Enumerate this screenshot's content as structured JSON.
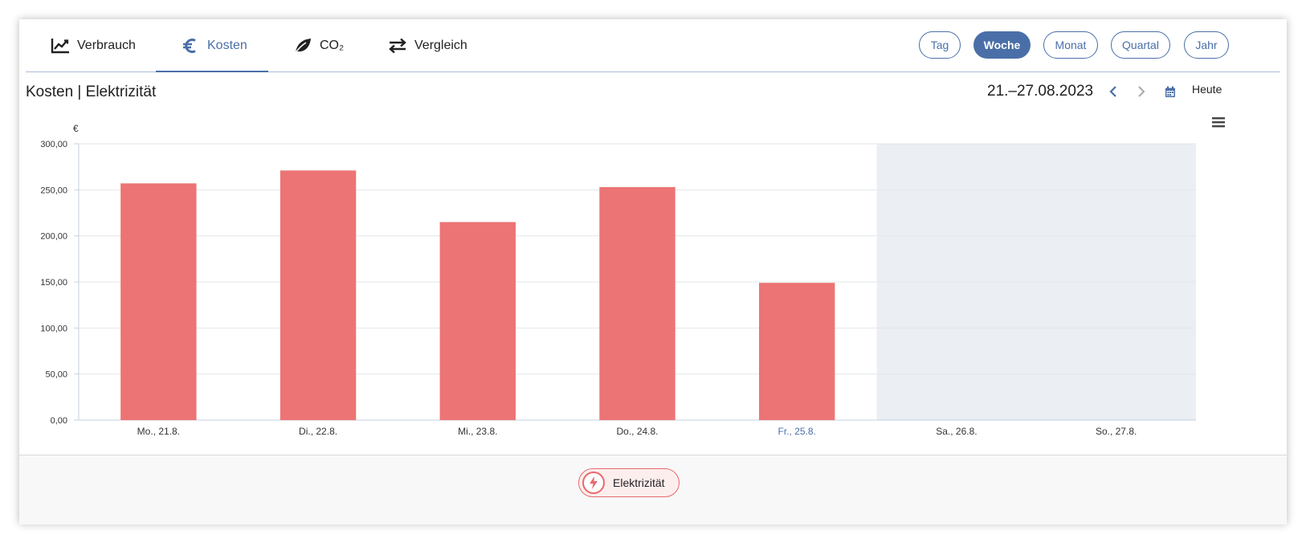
{
  "tabs": [
    {
      "label": "Verbrauch",
      "icon": "chart-line-icon",
      "active": false
    },
    {
      "label": "Kosten",
      "icon": "euro-icon",
      "active": true
    },
    {
      "label": "CO₂",
      "icon": "leaf-icon",
      "active": false
    },
    {
      "label": "Vergleich",
      "icon": "swap-arrows-icon",
      "active": false
    }
  ],
  "periods": [
    {
      "label": "Tag",
      "active": false
    },
    {
      "label": "Woche",
      "active": true
    },
    {
      "label": "Monat",
      "active": false
    },
    {
      "label": "Quartal",
      "active": false
    },
    {
      "label": "Jahr",
      "active": false
    }
  ],
  "header": {
    "title": "Kosten | Elektrizität",
    "date_range": "21.–27.08.2023",
    "today_label": "Heute"
  },
  "legend": {
    "label": "Elektrizität",
    "icon": "lightning-icon"
  },
  "colors": {
    "accent": "#4a6fa8",
    "bar": "#ec7474",
    "future_band": "#ebeef3"
  },
  "chart_data": {
    "type": "bar",
    "unit": "€",
    "categories": [
      "Mo., 21.8.",
      "Di., 22.8.",
      "Mi., 23.8.",
      "Do., 24.8.",
      "Fr., 25.8.",
      "Sa., 26.8.",
      "So., 27.8."
    ],
    "series": [
      {
        "name": "Elektrizität",
        "values": [
          257,
          271,
          215,
          253,
          149,
          null,
          null
        ]
      }
    ],
    "ylim": [
      0,
      300
    ],
    "yticks": [
      0,
      50,
      100,
      150,
      200,
      250,
      300
    ],
    "ytick_labels": [
      "0,00",
      "50,00",
      "100,00",
      "150,00",
      "200,00",
      "250,00",
      "300,00"
    ],
    "highlight_category": "Fr., 25.8.",
    "future_categories": [
      "Sa., 26.8.",
      "So., 27.8."
    ],
    "grid": true
  }
}
